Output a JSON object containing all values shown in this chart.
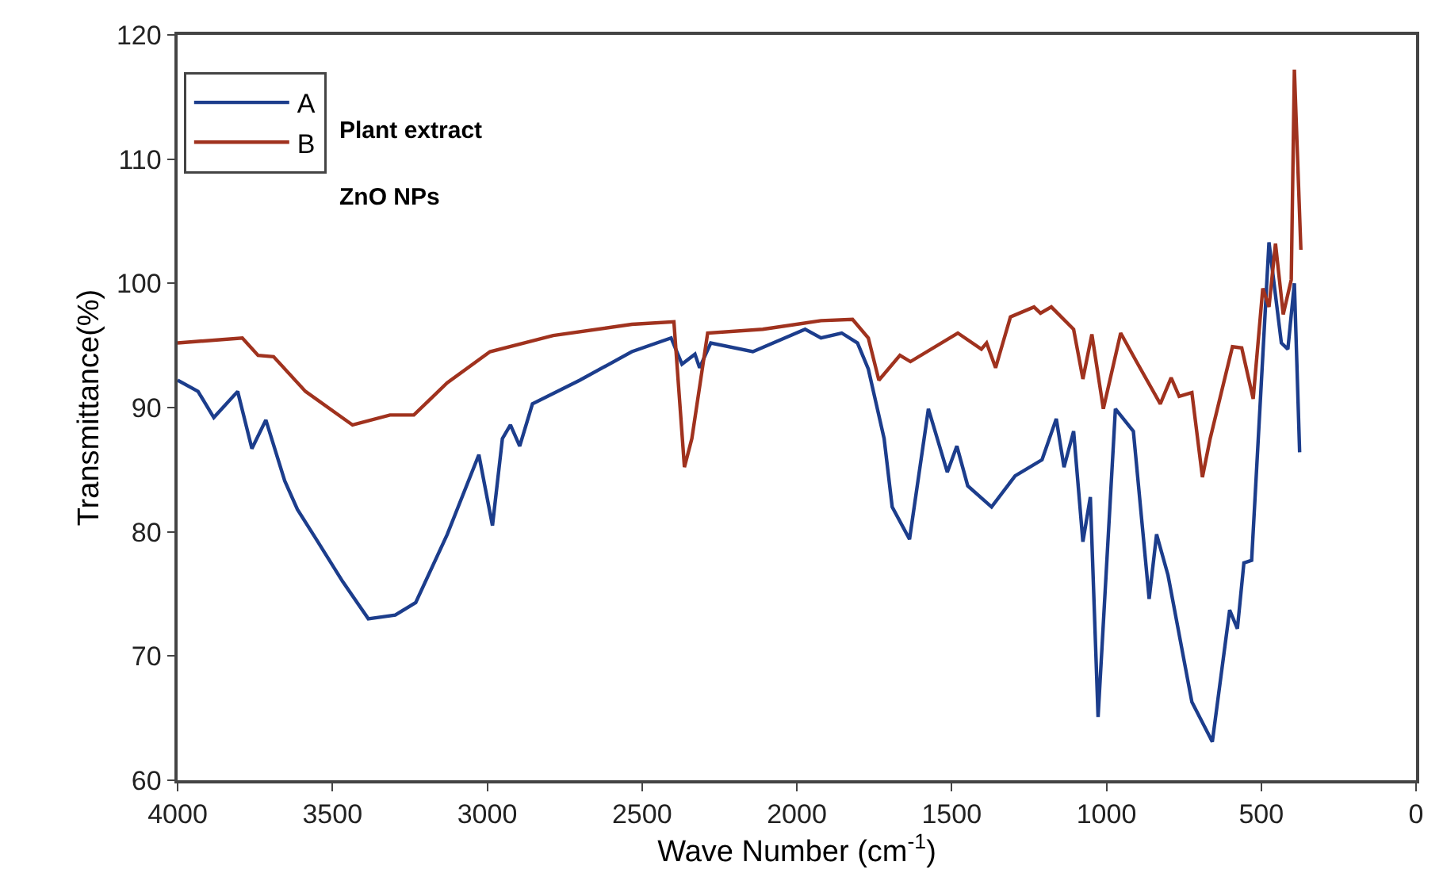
{
  "chart_data": {
    "type": "line",
    "xlabel": "Wave Number (cm$^{-1}$)",
    "ylabel": "Transmittance(%)",
    "xlim": [
      4000,
      0
    ],
    "xticks": [
      4000,
      3500,
      3000,
      2500,
      2000,
      1500,
      1000,
      500,
      0
    ],
    "ylim": [
      60,
      120
    ],
    "yticks": [
      60,
      70,
      80,
      90,
      100,
      110,
      120
    ],
    "legend": "top left",
    "marker": "none",
    "line_style": "solid",
    "annotations": [
      "Plant extract",
      "ZnO NPs"
    ],
    "series": [
      {
        "name": "A",
        "color": "#1c3d8c",
        "x": [
          4000,
          3934,
          3883,
          3806,
          3760,
          3715,
          3654,
          3613,
          3552,
          3467,
          3384,
          3297,
          3231,
          3129,
          3027,
          2983,
          2951,
          2925,
          2895,
          2854,
          2701,
          2533,
          2406,
          2371,
          2329,
          2314,
          2278,
          2142,
          1973,
          1922,
          1855,
          1804,
          1769,
          1718,
          1692,
          1636,
          1575,
          1514,
          1483,
          1448,
          1371,
          1295,
          1208,
          1162,
          1137,
          1106,
          1076,
          1052,
          1027,
          971,
          913,
          862,
          838,
          801,
          724,
          658,
          602,
          577,
          556,
          531,
          475,
          435,
          414,
          393,
          376
        ],
        "values": [
          92.2,
          91.3,
          89.2,
          91.3,
          86.7,
          89.0,
          84.1,
          81.8,
          79.4,
          76.0,
          73.0,
          73.3,
          74.3,
          79.8,
          86.2,
          80.5,
          87.5,
          88.6,
          86.9,
          90.3,
          92.2,
          94.5,
          95.6,
          93.5,
          94.3,
          93.2,
          95.2,
          94.5,
          96.3,
          95.6,
          96.0,
          95.2,
          93.1,
          87.5,
          82.0,
          79.4,
          89.9,
          84.8,
          86.9,
          83.7,
          82.0,
          84.5,
          85.8,
          89.1,
          85.2,
          88.1,
          79.2,
          82.8,
          65.1,
          89.9,
          88.1,
          74.6,
          79.8,
          76.5,
          66.3,
          63.1,
          73.7,
          72.2,
          77.5,
          77.7,
          103.3,
          95.2,
          94.7,
          100.0,
          86.4
        ]
      },
      {
        "name": "B",
        "color": "#a0321e",
        "x": [
          4000,
          3791,
          3740,
          3690,
          3587,
          3435,
          3314,
          3237,
          3129,
          2991,
          2787,
          2533,
          2397,
          2363,
          2339,
          2288,
          2110,
          1922,
          1820,
          1769,
          1735,
          1667,
          1633,
          1480,
          1404,
          1387,
          1358,
          1310,
          1234,
          1213,
          1178,
          1106,
          1076,
          1047,
          1010,
          954,
          903,
          826,
          791,
          765,
          724,
          690,
          665,
          593,
          563,
          526,
          495,
          475,
          454,
          429,
          403,
          393,
          372
        ],
        "values": [
          95.2,
          95.6,
          94.2,
          94.1,
          91.3,
          88.6,
          89.4,
          89.4,
          92.0,
          94.5,
          95.8,
          96.7,
          96.9,
          85.2,
          87.5,
          96.0,
          96.3,
          97.0,
          97.1,
          95.6,
          92.2,
          94.2,
          93.7,
          96.0,
          94.7,
          95.2,
          93.2,
          97.3,
          98.1,
          97.6,
          98.1,
          96.3,
          92.3,
          95.9,
          89.9,
          96.0,
          93.7,
          90.3,
          92.4,
          90.9,
          91.2,
          84.4,
          87.5,
          94.9,
          94.8,
          90.7,
          99.6,
          98.1,
          103.2,
          97.5,
          100.3,
          117.2,
          102.7
        ]
      }
    ]
  }
}
